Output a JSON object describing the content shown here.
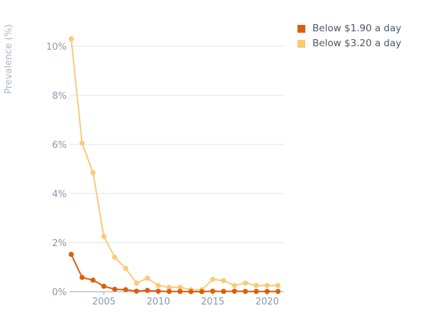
{
  "chart_data": {
    "type": "line",
    "title": "",
    "xlabel": "",
    "ylabel": "Prevalence (%)",
    "x": [
      2002,
      2003,
      2004,
      2005,
      2006,
      2007,
      2008,
      2009,
      2010,
      2011,
      2012,
      2013,
      2014,
      2015,
      2016,
      2017,
      2018,
      2019,
      2020,
      2021
    ],
    "xlim": [
      2001.85,
      2021.55
    ],
    "ylim": [
      0,
      10
    ],
    "x_ticks": [
      2005,
      2010,
      2015,
      2020
    ],
    "x_tick_labels": [
      "2005",
      "2010",
      "2015",
      "2020"
    ],
    "y_ticks": [
      0,
      2,
      4,
      6,
      8,
      10
    ],
    "y_tick_labels": [
      "0%",
      "2%",
      "4%",
      "6%",
      "8%",
      "10%"
    ],
    "grid": true,
    "legend_position": "top-right",
    "series": [
      {
        "name": "Below $3.20 a day",
        "color": "#fcc976",
        "values": [
          10.3,
          6.05,
          4.85,
          2.25,
          1.4,
          0.95,
          0.35,
          0.55,
          0.25,
          0.18,
          0.18,
          0.08,
          0.08,
          0.5,
          0.45,
          0.25,
          0.35,
          0.25,
          0.25,
          0.25
        ]
      },
      {
        "name": "Below $1.90 a day",
        "color": "#d95f0e",
        "values": [
          1.52,
          0.58,
          0.47,
          0.22,
          0.1,
          0.08,
          0.02,
          0.05,
          0.02,
          0.01,
          0.01,
          0.0,
          0.0,
          0.02,
          0.01,
          0.02,
          0.01,
          0.01,
          0.01,
          0.01
        ]
      }
    ]
  },
  "legend": {
    "items": [
      {
        "label": "Below $1.90 a day",
        "color": "#d95f0e"
      },
      {
        "label": "Below $3.20 a day",
        "color": "#fcc976"
      }
    ]
  }
}
